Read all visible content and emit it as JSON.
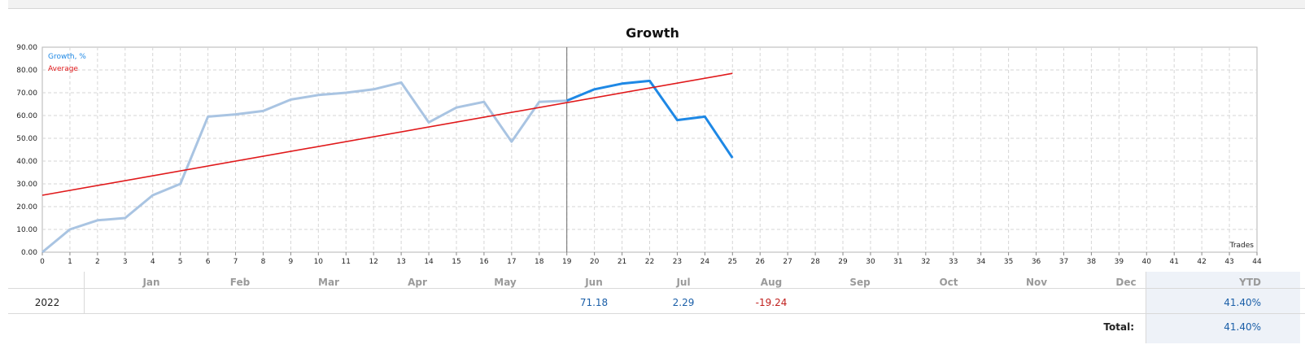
{
  "chart_data": {
    "type": "line",
    "title": "Growth",
    "xlabel": "Trades",
    "ylabel": "",
    "xlim": [
      0,
      44
    ],
    "ylim": [
      0,
      90
    ],
    "x_ticks": [
      0,
      1,
      2,
      3,
      4,
      5,
      6,
      7,
      8,
      9,
      10,
      11,
      12,
      13,
      14,
      15,
      16,
      17,
      18,
      19,
      20,
      21,
      22,
      23,
      24,
      25,
      26,
      27,
      28,
      29,
      30,
      31,
      32,
      33,
      34,
      35,
      36,
      37,
      38,
      39,
      40,
      41,
      42,
      43,
      44
    ],
    "y_ticks": [
      "0.00",
      "10.00",
      "20.00",
      "30.00",
      "40.00",
      "50.00",
      "60.00",
      "70.00",
      "80.00",
      "90.00"
    ],
    "grid": true,
    "legend_position": "top-left",
    "highlight_from_x": 19,
    "series": [
      {
        "name": "Growth, %",
        "color": "#1e88e5",
        "faded_color": "#a9c4e2",
        "x": [
          0,
          1,
          2,
          3,
          4,
          5,
          6,
          7,
          8,
          9,
          10,
          11,
          12,
          13,
          14,
          15,
          16,
          17,
          18,
          19,
          20,
          21,
          22,
          23,
          24,
          25
        ],
        "values": [
          0,
          10,
          14,
          15,
          25,
          30,
          59.5,
          60.5,
          62,
          67,
          69,
          70,
          71.5,
          74.5,
          57,
          63.5,
          66,
          48.5,
          66,
          66.5,
          71.5,
          74,
          75.2,
          58,
          59.5,
          41.4
        ]
      },
      {
        "name": "Average",
        "color": "#e0191b",
        "x": [
          0,
          25
        ],
        "values": [
          25,
          78.5
        ]
      }
    ]
  },
  "table": {
    "months": [
      "Jan",
      "Feb",
      "Mar",
      "Apr",
      "May",
      "Jun",
      "Jul",
      "Aug",
      "Sep",
      "Oct",
      "Nov",
      "Dec"
    ],
    "ytd_label": "YTD",
    "rows": [
      {
        "year": "2022",
        "values": [
          "",
          "",
          "",
          "",
          "",
          "71.18",
          "2.29",
          "-19.24",
          "",
          "",
          "",
          ""
        ],
        "ytd": "41.40%"
      }
    ],
    "total_label": "Total:",
    "total_value": "41.40%"
  }
}
